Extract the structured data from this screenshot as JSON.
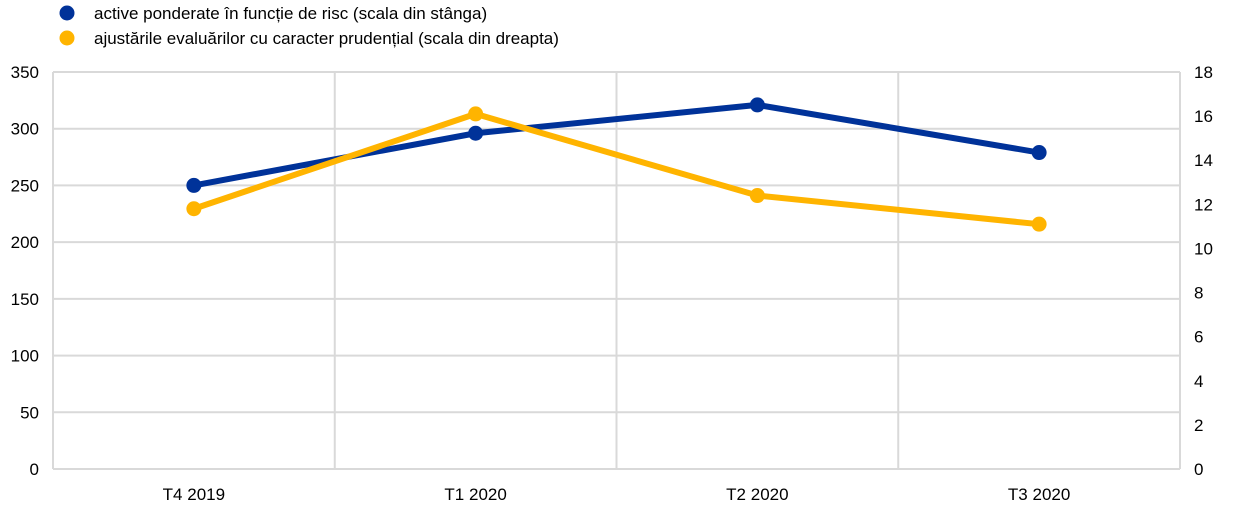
{
  "chart_data": {
    "type": "line",
    "title": "",
    "categories": [
      "T4 2019",
      "T1 2020",
      "T2 2020",
      "T3 2020"
    ],
    "series": [
      {
        "name": "active ponderate în funcție de risc (scala din stânga)",
        "axis": "left",
        "color": "#003299",
        "values": [
          250,
          296,
          321,
          279
        ]
      },
      {
        "name": "ajustările evaluărilor cu caracter prudențial (scala din dreapta)",
        "axis": "right",
        "color": "#FFB400",
        "values": [
          11.8,
          16.1,
          12.4,
          11.1
        ]
      }
    ],
    "y_left": {
      "range": [
        0,
        350
      ],
      "ticks": [
        0,
        50,
        100,
        150,
        200,
        250,
        300,
        350
      ]
    },
    "y_right": {
      "range": [
        0,
        18
      ],
      "ticks": [
        0,
        2,
        4,
        6,
        8,
        10,
        12,
        14,
        16,
        18
      ]
    },
    "grid": true,
    "legend_position": "top-left"
  }
}
